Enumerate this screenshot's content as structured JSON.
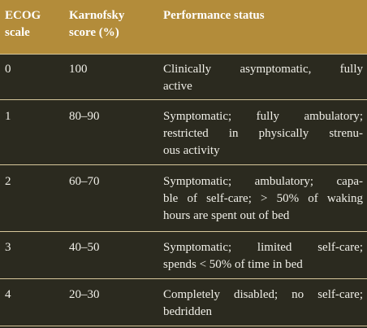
{
  "table": {
    "headers": [
      [
        "ECOG",
        "scale"
      ],
      [
        "Karnofsky",
        "score (%)"
      ],
      [
        "Performance status"
      ]
    ],
    "rows": [
      {
        "ecog": "0",
        "karnofsky": "100",
        "status_lines": [
          "Clinically asymptomatic, fully",
          "active"
        ]
      },
      {
        "ecog": "1",
        "karnofsky": "80–90",
        "status_lines": [
          "Symptomatic; fully ambulatory;",
          "restricted in physically strenu-",
          "ous activity"
        ]
      },
      {
        "ecog": "2",
        "karnofsky": "60–70",
        "status_lines": [
          "Symptomatic; ambulatory; capa-",
          "ble of self-care; > 50% of waking",
          "hours are spent out of bed"
        ]
      },
      {
        "ecog": "3",
        "karnofsky": "40–50",
        "status_lines": [
          "Symptomatic; limited self-care;",
          "spends < 50% of time in bed"
        ]
      },
      {
        "ecog": "4",
        "karnofsky": "20–30",
        "status_lines": [
          "Completely disabled; no self-care;",
          "bedridden"
        ]
      }
    ]
  }
}
